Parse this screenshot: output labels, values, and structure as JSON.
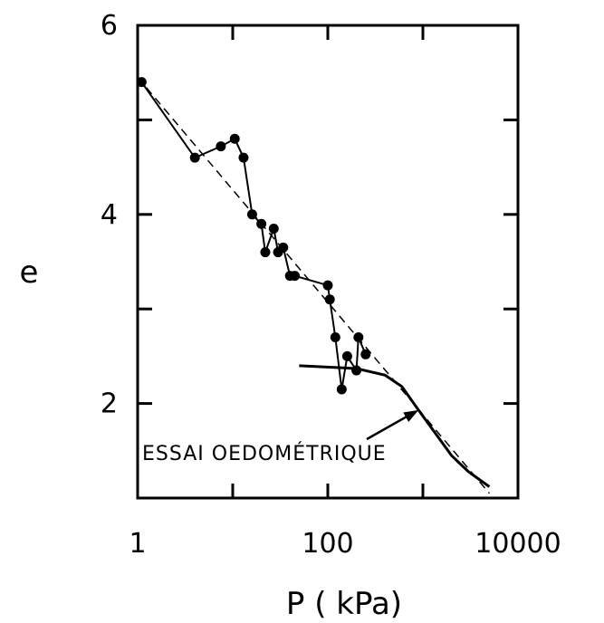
{
  "chart_data": {
    "type": "scatter",
    "xscale": "log",
    "xlim": [
      1,
      10000
    ],
    "ylim": [
      1,
      6
    ],
    "xticks": [
      1,
      10,
      100,
      1000,
      10000
    ],
    "xtick_labels": [
      "1",
      "100",
      "10000"
    ],
    "xtick_label_values": [
      1,
      100,
      10000
    ],
    "yticks": [
      1,
      2,
      3,
      4,
      5,
      6
    ],
    "ytick_labels": [
      "2",
      "4",
      "6"
    ],
    "ytick_label_values": [
      2,
      4,
      6
    ],
    "xlabel": "P ( kPa)",
    "ylabel": "e",
    "series": [
      {
        "kind": "points-connected",
        "x": [
          1.1,
          4.0,
          7.5,
          10.5,
          13.0,
          16.0,
          20.0,
          22.0,
          27.0,
          30.0,
          34.0,
          40.0,
          45.0,
          100.0,
          105.0,
          120.0,
          140.0,
          160.0,
          200.0,
          210.0,
          250.0
        ],
        "y": [
          5.4,
          4.6,
          4.72,
          4.8,
          4.6,
          4.0,
          3.9,
          3.6,
          3.85,
          3.6,
          3.65,
          3.35,
          3.35,
          3.25,
          3.1,
          2.7,
          2.15,
          2.5,
          2.35,
          2.7,
          2.52
        ]
      },
      {
        "kind": "trend",
        "x": [
          1.0,
          5000.0
        ],
        "y": [
          5.45,
          1.05
        ]
      },
      {
        "kind": "oedometric",
        "x": [
          50,
          200,
          400,
          600,
          900,
          2000,
          3000,
          5000
        ],
        "y": [
          2.4,
          2.37,
          2.3,
          2.18,
          1.93,
          1.45,
          1.28,
          1.12
        ]
      }
    ],
    "annotations": [
      {
        "text": "ESSAI OEDOMÉTRIQUE",
        "arrow_to": {
          "x": 900,
          "y": 1.93
        }
      }
    ]
  }
}
